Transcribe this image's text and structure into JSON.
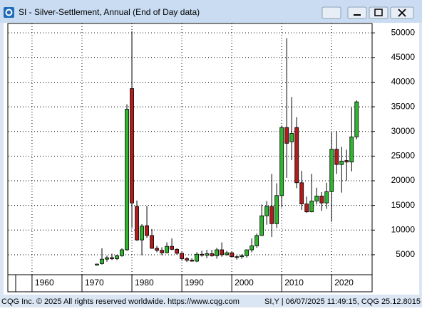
{
  "window_title": "SI - Silver-Settlement, Annual (End of Day data)",
  "footer": {
    "left": "CQG Inc. © 2025 All rights reserved worldwide. https://www.cqg.com",
    "right": "SI,Y | 06/07/2025 11:49:15, CQG 25.12.8015"
  },
  "chart_data": {
    "type": "candlestick",
    "x": [
      1973,
      1974,
      1975,
      1976,
      1977,
      1978,
      1979,
      1980,
      1981,
      1982,
      1983,
      1984,
      1985,
      1986,
      1987,
      1988,
      1989,
      1990,
      1991,
      1992,
      1993,
      1994,
      1995,
      1996,
      1997,
      1998,
      1999,
      2000,
      2001,
      2002,
      2003,
      2004,
      2005,
      2006,
      2007,
      2008,
      2009,
      2010,
      2011,
      2012,
      2013,
      2014,
      2015,
      2016,
      2017,
      2018,
      2019,
      2020,
      2021,
      2022,
      2023,
      2024,
      2025
    ],
    "open": [
      2900,
      3200,
      4100,
      4400,
      4200,
      4800,
      6000,
      38700,
      14800,
      8000,
      10900,
      8900,
      6300,
      5900,
      5400,
      6700,
      6100,
      5300,
      4200,
      3900,
      3700,
      5100,
      4900,
      5200,
      4800,
      6000,
      5000,
      5400,
      4600,
      4600,
      4800,
      6000,
      6800,
      8900,
      12900,
      14800,
      11300,
      17000,
      30800,
      27900,
      30800,
      19600,
      15300,
      13700,
      15900,
      16900,
      15500,
      17800,
      26400,
      23300,
      24100,
      23800,
      28900
    ],
    "high": [
      3200,
      6300,
      4800,
      5200,
      5000,
      6300,
      35500,
      50300,
      16000,
      11200,
      14900,
      10200,
      6800,
      6500,
      7500,
      8300,
      6300,
      5500,
      4500,
      4300,
      5500,
      5800,
      6000,
      6000,
      6400,
      7500,
      5800,
      5600,
      4900,
      5100,
      6000,
      8300,
      9300,
      15200,
      15900,
      21400,
      19500,
      31200,
      48900,
      37000,
      32900,
      22000,
      16800,
      21400,
      18600,
      17700,
      19600,
      29800,
      30100,
      26900,
      26300,
      34900,
      36300
    ],
    "low": [
      2800,
      3000,
      3600,
      3900,
      3900,
      4600,
      5800,
      10500,
      7800,
      4900,
      8400,
      6200,
      5500,
      4900,
      5300,
      5900,
      5000,
      3800,
      3500,
      3600,
      3500,
      4600,
      4300,
      4600,
      4200,
      4600,
      4800,
      4600,
      4000,
      4200,
      4400,
      5500,
      6400,
      8800,
      11100,
      8600,
      10400,
      14600,
      20600,
      24200,
      18500,
      14100,
      13500,
      13600,
      15200,
      13900,
      14300,
      11700,
      21400,
      17600,
      20000,
      21900,
      28400
    ],
    "close": [
      3100,
      4100,
      4400,
      4200,
      4800,
      6000,
      34500,
      15500,
      8000,
      10800,
      8900,
      6300,
      5900,
      5400,
      6700,
      6100,
      5300,
      4200,
      3900,
      3700,
      5100,
      4900,
      5200,
      4800,
      6000,
      5000,
      5400,
      4600,
      4600,
      4800,
      6000,
      6800,
      8900,
      12900,
      14800,
      11300,
      17000,
      30800,
      27600,
      29600,
      19600,
      15300,
      13700,
      15900,
      16900,
      15500,
      17800,
      26400,
      23300,
      24000,
      23800,
      28900,
      36000
    ],
    "up_color": "#2fb52f",
    "down_color": "#b31c1c",
    "xlim": [
      1955.3,
      2028.1
    ],
    "xticks": [
      1960,
      1970,
      1980,
      1990,
      2000,
      2010,
      2020
    ],
    "ylim": [
      950,
      51900
    ],
    "yticks": [
      5000,
      10000,
      15000,
      20000,
      25000,
      30000,
      35000,
      40000,
      45000,
      50000
    ],
    "grid": true
  }
}
